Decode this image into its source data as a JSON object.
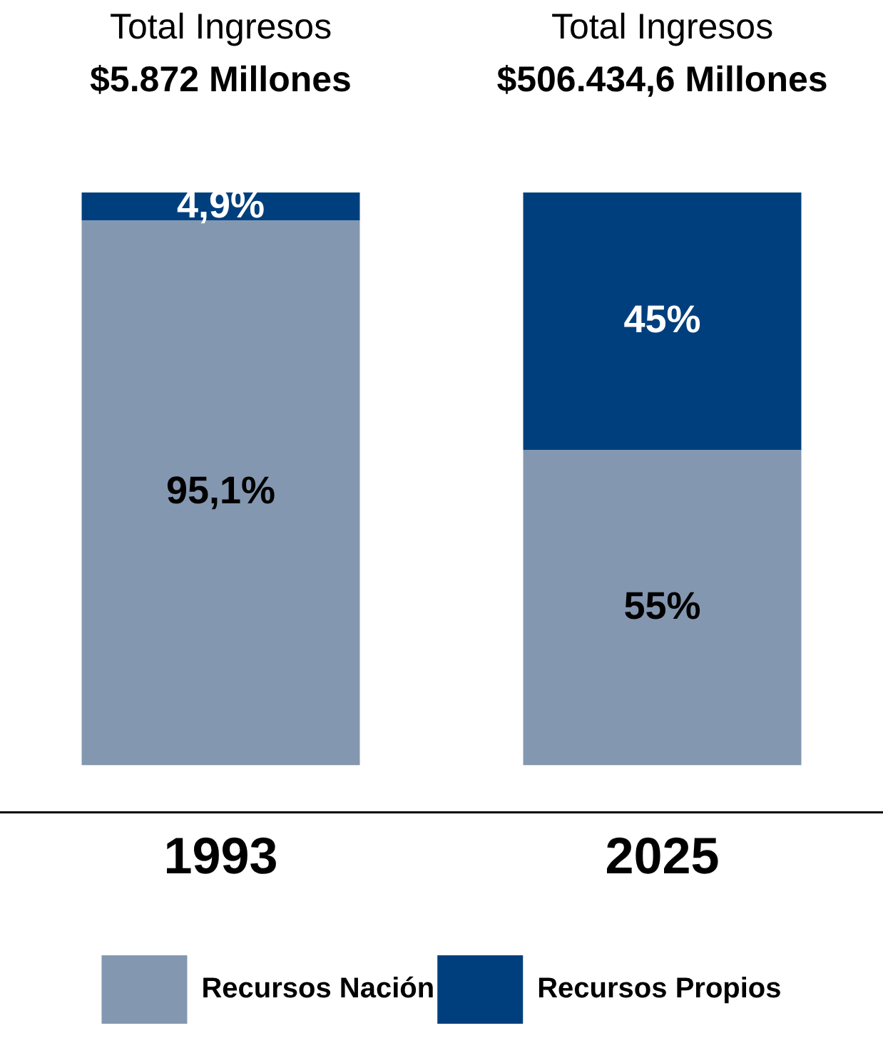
{
  "chart_data": {
    "type": "bar",
    "stacked": true,
    "categories": [
      "1993",
      "2025"
    ],
    "series": [
      {
        "name": "Recursos Nación",
        "color": "#8497b0",
        "values": [
          95.1,
          55
        ],
        "value_labels": [
          "95,1%",
          "55%"
        ]
      },
      {
        "name": "Recursos Propios",
        "color": "#003f7d",
        "values": [
          4.9,
          45
        ],
        "value_labels": [
          "4,9%",
          "45%"
        ]
      }
    ],
    "annotations": [
      "Total Ingresos",
      "$5.872 Millones",
      "Total Ingresos",
      "$506.434,6 Millones"
    ],
    "legend": "bottom",
    "grid": false
  }
}
